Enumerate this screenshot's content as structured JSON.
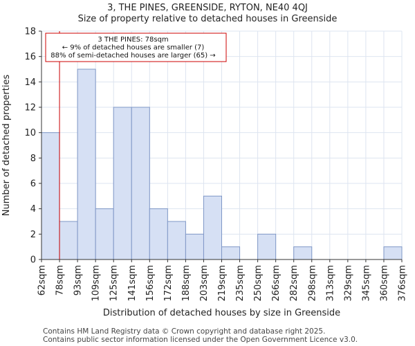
{
  "title_line1": "3, THE PINES, GREENSIDE, RYTON, NE40 4QJ",
  "title_line2": "Size of property relative to detached houses in Greenside",
  "footer_line1": "Contains HM Land Registry data © Crown copyright and database right 2025.",
  "footer_line2": "Contains public sector information licensed under the Open Government Licence v3.0.",
  "colors": {
    "bar_fill": "#d6e0f4",
    "bar_edge": "#7f97c6",
    "marker_line": "#cc0000",
    "grid": "#dde4f0",
    "axis": "#333333"
  },
  "chart_data": {
    "type": "bar",
    "xlabel": "Distribution of detached houses by size in Greenside",
    "ylabel": "Number of detached properties",
    "ylim": [
      0,
      18
    ],
    "yticks": [
      0,
      2,
      4,
      6,
      8,
      10,
      12,
      14,
      16,
      18
    ],
    "bin_edges": [
      "62sqm",
      "78sqm",
      "93sqm",
      "109sqm",
      "125sqm",
      "141sqm",
      "156sqm",
      "172sqm",
      "188sqm",
      "203sqm",
      "219sqm",
      "235sqm",
      "250sqm",
      "266sqm",
      "282sqm",
      "298sqm",
      "313sqm",
      "329sqm",
      "345sqm",
      "360sqm",
      "376sqm"
    ],
    "values": [
      10,
      3,
      15,
      4,
      12,
      12,
      4,
      3,
      2,
      5,
      1,
      0,
      2,
      0,
      1,
      0,
      0,
      0,
      0,
      1
    ],
    "grid": true,
    "marker": {
      "x_edge_index": 1,
      "label": "3 THE PINES: 78sqm"
    },
    "annotation": {
      "lines": [
        "3 THE PINES: 78sqm",
        "← 9% of detached houses are smaller (7)",
        "88% of semi-detached houses are larger (65) →"
      ]
    }
  }
}
